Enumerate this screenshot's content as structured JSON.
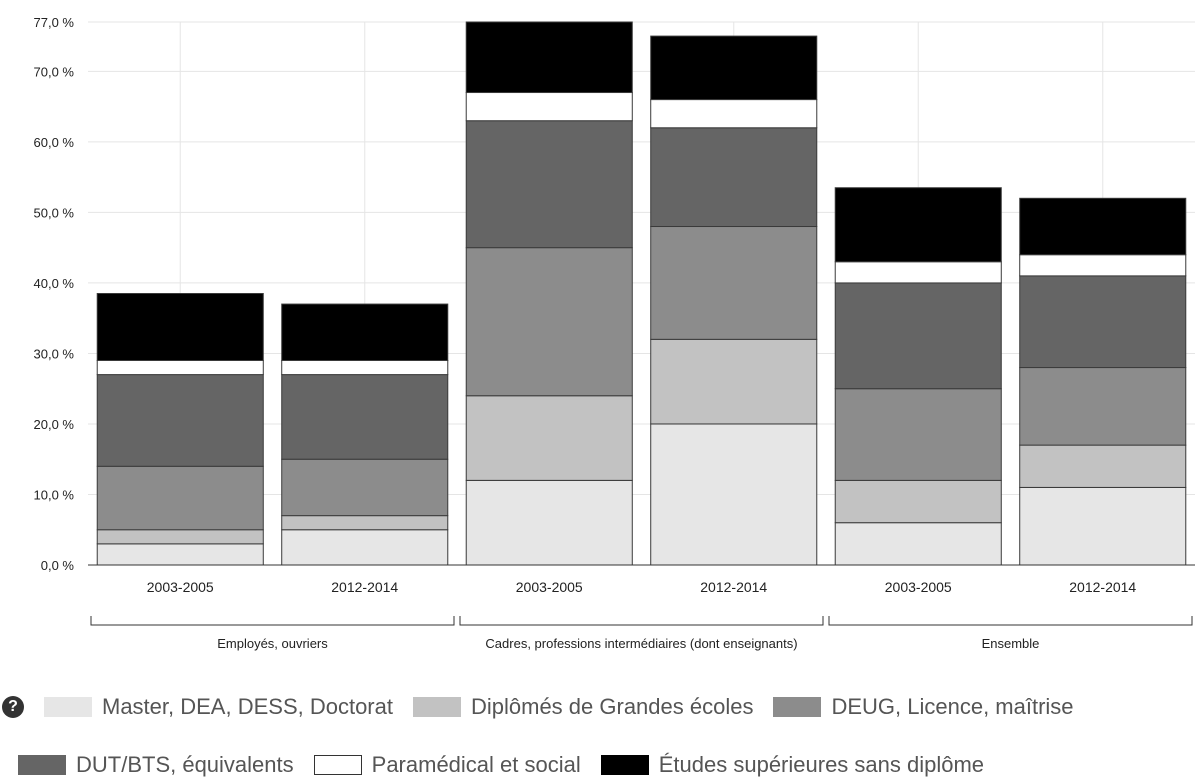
{
  "chart_data": {
    "type": "bar",
    "stacked": true,
    "ylim": [
      0,
      77
    ],
    "y_ticks": [
      {
        "value": 0,
        "label": "0,0 %"
      },
      {
        "value": 10,
        "label": "10,0 %"
      },
      {
        "value": 20,
        "label": "20,0 %"
      },
      {
        "value": 30,
        "label": "30,0 %"
      },
      {
        "value": 40,
        "label": "40,0 %"
      },
      {
        "value": 50,
        "label": "50,0 %"
      },
      {
        "value": 60,
        "label": "60,0 %"
      },
      {
        "value": 70,
        "label": "70,0 %"
      },
      {
        "value": 77,
        "label": "77,0 %"
      }
    ],
    "categories": [
      "2003-2005",
      "2012-2014",
      "2003-2005",
      "2012-2014",
      "2003-2005",
      "2012-2014"
    ],
    "groups": [
      {
        "label": "Employés, ouvriers",
        "categories": [
          0,
          1
        ]
      },
      {
        "label": "Cadres, professions intermédiaires (dont enseignants)",
        "categories": [
          2,
          3
        ]
      },
      {
        "label": "Ensemble",
        "categories": [
          4,
          5
        ]
      }
    ],
    "series": [
      {
        "name": "Master, DEA, DESS, Doctorat",
        "color": "#e6e6e6",
        "values": [
          3,
          5,
          12,
          20,
          6,
          11
        ]
      },
      {
        "name": "Diplômés de Grandes écoles",
        "color": "#c2c2c2",
        "values": [
          2,
          2,
          12,
          12,
          6,
          6
        ]
      },
      {
        "name": "DEUG, Licence, maîtrise",
        "color": "#8c8c8c",
        "values": [
          9,
          8,
          21,
          16,
          13,
          11
        ]
      },
      {
        "name": "DUT/BTS, équivalents",
        "color": "#656565",
        "values": [
          13,
          12,
          18,
          14,
          15,
          13
        ]
      },
      {
        "name": "Paramédical et social",
        "color": "#ffffff",
        "values": [
          2,
          2,
          4,
          4,
          3,
          3
        ]
      },
      {
        "name": "Études supérieures sans diplôme",
        "color": "#000000",
        "values": [
          9.5,
          8,
          10,
          9,
          10.5,
          8
        ]
      }
    ],
    "grid": true,
    "legend_position": "bottom",
    "title": "",
    "xlabel": "",
    "ylabel": ""
  },
  "legend": {
    "help_icon": "question-circle-icon",
    "help_glyph": "?"
  }
}
